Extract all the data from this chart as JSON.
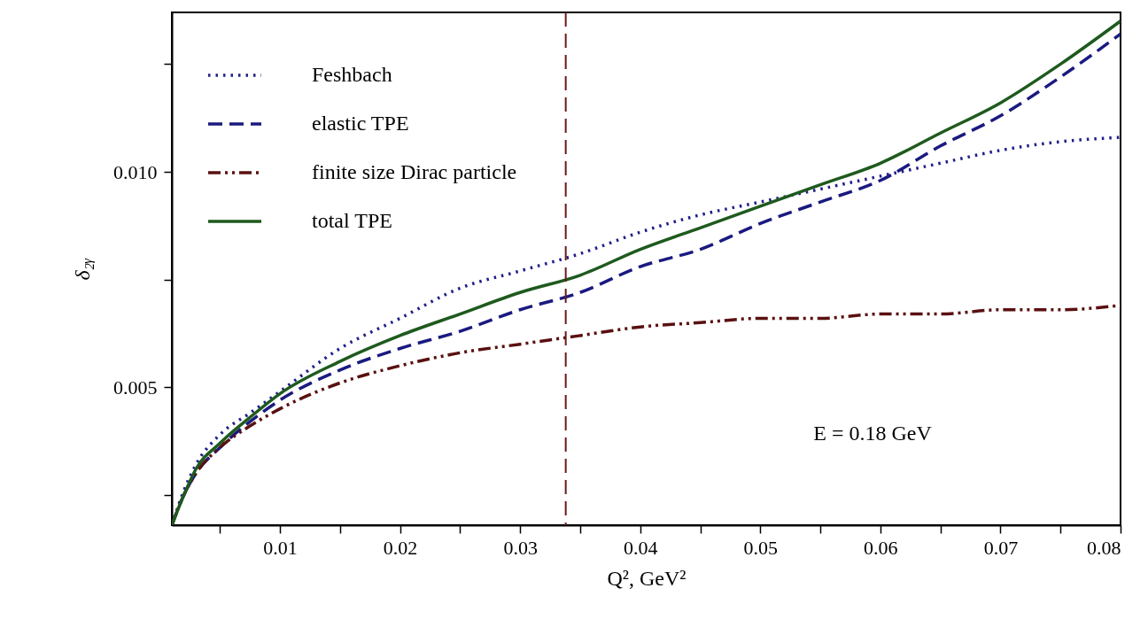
{
  "chart_data": {
    "type": "line",
    "xlabel": "Q², GeV²",
    "ylabel": "δ₂ᵧ",
    "x": [
      0.001,
      0.002,
      0.003,
      0.005,
      0.0075,
      0.01,
      0.015,
      0.02,
      0.025,
      0.03,
      0.035,
      0.04,
      0.045,
      0.05,
      0.055,
      0.06,
      0.065,
      0.07,
      0.075,
      0.08
    ],
    "series": [
      {
        "name": "Feshbach",
        "color": "#1f1f8a",
        "line_style": "dotted",
        "values": [
          0.0018,
          0.0026,
          0.0032,
          0.0039,
          0.0044,
          0.0049,
          0.0059,
          0.0066,
          0.0073,
          0.0077,
          0.0081,
          0.0086,
          0.009,
          0.0093,
          0.0096,
          0.0099,
          0.0102,
          0.0105,
          0.0107,
          0.0108
        ]
      },
      {
        "name": "elastic TPE",
        "color": "#1a1a80",
        "line_style": "dashed",
        "values": [
          0.0018,
          0.0025,
          0.003,
          0.0036,
          0.0042,
          0.0047,
          0.0054,
          0.0059,
          0.0063,
          0.0068,
          0.0072,
          0.0078,
          0.0082,
          0.0088,
          0.0093,
          0.0098,
          0.0106,
          0.0113,
          0.0122,
          0.0132
        ]
      },
      {
        "name": "finite size Dirac particle",
        "color": "#5a1010",
        "line_style": "dashdotdot",
        "values": [
          0.0018,
          0.0025,
          0.003,
          0.0036,
          0.0041,
          0.0045,
          0.0051,
          0.0055,
          0.0058,
          0.006,
          0.0062,
          0.0064,
          0.0065,
          0.0066,
          0.0066,
          0.0067,
          0.0067,
          0.0068,
          0.0068,
          0.0069
        ]
      },
      {
        "name": "total TPE",
        "color": "#1e5a1e",
        "line_style": "solid",
        "values": [
          0.0018,
          0.0025,
          0.0031,
          0.0037,
          0.0043,
          0.00485,
          0.0056,
          0.0062,
          0.0067,
          0.0072,
          0.0076,
          0.0082,
          0.0087,
          0.0092,
          0.0097,
          0.0102,
          0.0109,
          0.0116,
          0.0125,
          0.0135
        ]
      }
    ],
    "xlim": [
      0.001,
      0.08
    ],
    "xticks": [
      {
        "value": 0.005,
        "label": null
      },
      0.01,
      {
        "value": 0.015,
        "label": null
      },
      0.02,
      {
        "value": 0.025,
        "label": null
      },
      0.03,
      {
        "value": 0.035,
        "label": null
      },
      0.04,
      {
        "value": 0.045,
        "label": null
      },
      0.05,
      {
        "value": 0.055,
        "label": null
      },
      0.06,
      {
        "value": 0.065,
        "label": null
      },
      0.07,
      {
        "value": 0.075,
        "label": null
      },
      0.08
    ],
    "ylim": [
      0.0018,
      0.0137
    ],
    "yticks": [
      {
        "value": 0.0025,
        "label": null
      },
      0.005,
      {
        "value": 0.0075,
        "label": null
      },
      {
        "value": 0.01,
        "label": "0.010"
      },
      {
        "value": 0.0125,
        "label": null
      }
    ],
    "ref_lines": [
      {
        "axis": "x",
        "value": 0.0338,
        "color": "#6b1a1a",
        "line_style": "dashed"
      }
    ],
    "annotations": [
      "E = 0.18 GeV"
    ],
    "grid": false,
    "legend": "top left"
  }
}
